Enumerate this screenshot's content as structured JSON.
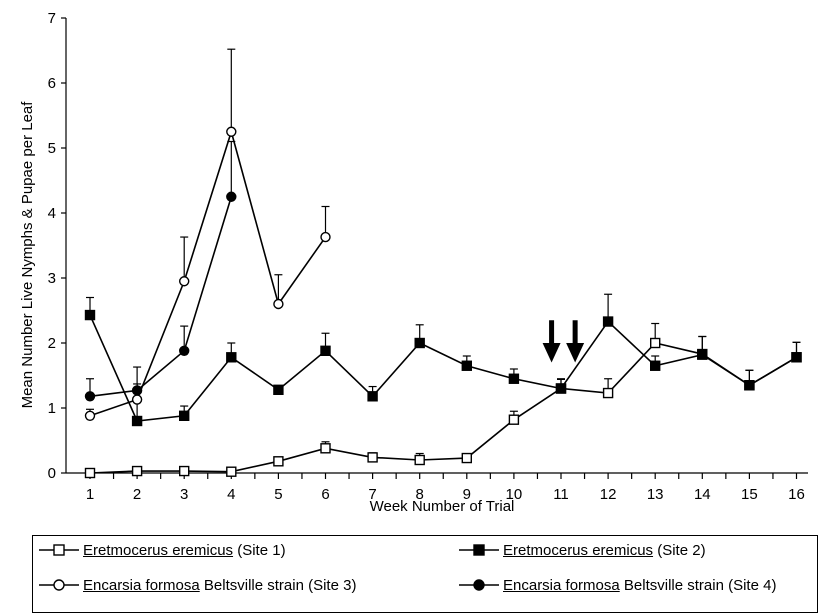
{
  "chart_data": {
    "type": "line",
    "xlabel": "Week Number of Trial",
    "ylabel": "Mean Number Live Nymphs & Pupae per Leaf",
    "ylim": [
      0,
      7
    ],
    "xlim": [
      1,
      16
    ],
    "yticks": [
      "0",
      "1",
      "2",
      "3",
      "4",
      "5",
      "6",
      "7"
    ],
    "xticks": [
      "1",
      "2",
      "3",
      "4",
      "5",
      "6",
      "7",
      "8",
      "9",
      "10",
      "11",
      "12",
      "13",
      "14",
      "15",
      "16"
    ],
    "grid": false,
    "legend_position": "bottom",
    "annotations": [
      {
        "kind": "down-arrow",
        "x": 10.8
      },
      {
        "kind": "down-arrow",
        "x": 11.3
      }
    ],
    "series": [
      {
        "species": "Eretmocerus eremicus",
        "site": "(Site 1)",
        "marker": "open-square",
        "x": [
          1,
          2,
          3,
          4,
          5,
          6,
          7,
          8,
          9,
          10,
          11,
          12,
          13,
          14,
          15,
          16
        ],
        "y": [
          0.0,
          0.03,
          0.03,
          0.02,
          0.18,
          0.38,
          0.24,
          0.2,
          0.23,
          0.82,
          1.3,
          1.23,
          2.0,
          1.83,
          1.35,
          1.78
        ],
        "err": [
          0.02,
          0.04,
          0.04,
          0.03,
          0.06,
          0.1,
          0.07,
          0.1,
          0.05,
          0.13,
          0.14,
          0.22,
          0.3,
          0.27,
          0.23,
          0.23
        ]
      },
      {
        "species": "Eretmocerus eremicus",
        "site": "(Site 2)",
        "marker": "filled-square",
        "x": [
          1,
          2,
          3,
          4,
          5,
          6,
          7,
          8,
          9,
          10,
          11,
          12,
          13,
          14,
          15,
          16
        ],
        "y": [
          2.43,
          0.8,
          0.88,
          1.78,
          1.28,
          1.88,
          1.18,
          2.0,
          1.65,
          1.45,
          1.3,
          2.33,
          1.65,
          1.82,
          1.35,
          1.78
        ],
        "err": [
          0.27,
          0.83,
          0.15,
          0.22,
          0.04,
          0.27,
          0.15,
          0.28,
          0.15,
          0.15,
          0.15,
          0.42,
          0.15,
          0.28,
          0.23,
          0.23
        ]
      },
      {
        "species": "Encarsia formosa",
        "site": "Beltsville strain (Site 3)",
        "marker": "open-circle",
        "x": [
          1,
          2,
          3,
          4,
          5,
          6
        ],
        "y": [
          0.88,
          1.13,
          2.95,
          5.25,
          2.6,
          3.63
        ],
        "err": [
          0.1,
          0.1,
          0.68,
          1.27,
          0.45,
          0.47
        ]
      },
      {
        "species": "Encarsia formosa",
        "site": "Beltsville strain (Site 4)",
        "marker": "filled-circle",
        "x": [
          1,
          2,
          3,
          4
        ],
        "y": [
          1.18,
          1.27,
          1.88,
          4.25
        ],
        "err": [
          0.27,
          0.1,
          0.38,
          0.85
        ]
      }
    ]
  }
}
